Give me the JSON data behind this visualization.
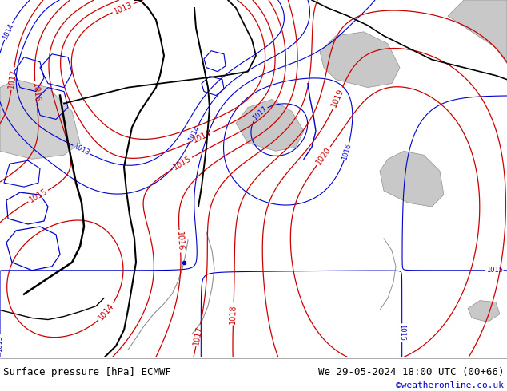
{
  "background_color": "#b5e47a",
  "footer_left": "Surface pressure [hPa] ECMWF",
  "footer_right": "We 29-05-2024 18:00 UTC (00+66)",
  "footer_credit": "©weatheronline.co.uk",
  "footer_color": "#000000",
  "credit_color": "#0000cc",
  "footer_bg": "#c8e88a",
  "fig_width": 6.34,
  "fig_height": 4.9,
  "dpi": 100,
  "contour_color_red": "#cc0000",
  "contour_color_blue": "#0000cc",
  "contour_color_black": "#000000",
  "font_size_footer": 9,
  "font_size_labels": 7
}
